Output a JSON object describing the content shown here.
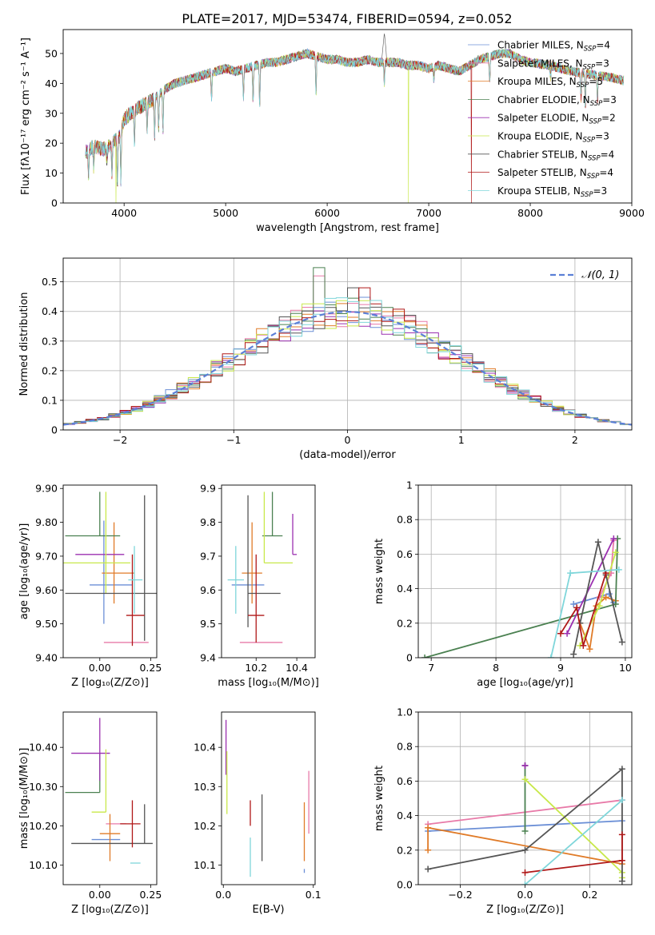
{
  "title": "PLATE=2017, MJD=53474, FIBERID=0594, z=0.052",
  "fits": [
    {
      "name": "Chabrier MILES",
      "nssp": "4",
      "color": "#6b8fd6"
    },
    {
      "name": "Salpeter MILES",
      "nssp": "3",
      "color": "#e87aa8"
    },
    {
      "name": "Kroupa MILES",
      "nssp": "5",
      "color": "#e07b28"
    },
    {
      "name": "Chabrier ELODIE",
      "nssp": "3",
      "color": "#4a8050"
    },
    {
      "name": "Salpeter ELODIE",
      "nssp": "2",
      "color": "#9b30b0"
    },
    {
      "name": "Kroupa ELODIE",
      "nssp": "3",
      "color": "#c8e84a"
    },
    {
      "name": "Chabrier STELIB",
      "nssp": "4",
      "color": "#555555"
    },
    {
      "name": "Salpeter STELIB",
      "nssp": "4",
      "color": "#b01818"
    },
    {
      "name": "Kroupa STELIB",
      "nssp": "3",
      "color": "#7fd6da"
    }
  ],
  "chart_data": [
    {
      "id": "spectrum",
      "type": "line",
      "xlabel": "wavelength [Angstrom, rest frame]",
      "ylabel": "Flux [fλ10⁻¹⁷ erg cm⁻² s⁻¹ A⁻¹]",
      "xlim": [
        3400,
        9000
      ],
      "ylim": [
        0,
        58
      ],
      "xticks": [
        4000,
        5000,
        6000,
        7000,
        8000,
        9000
      ],
      "yticks": [
        0,
        10,
        20,
        30,
        40,
        50
      ],
      "legend": "top-right",
      "continuum": [
        [
          3620,
          17
        ],
        [
          3700,
          19
        ],
        [
          3800,
          18
        ],
        [
          3880,
          20
        ],
        [
          3950,
          22
        ],
        [
          4000,
          28
        ],
        [
          4100,
          31
        ],
        [
          4200,
          33
        ],
        [
          4300,
          35
        ],
        [
          4400,
          38
        ],
        [
          4500,
          40
        ],
        [
          4600,
          41
        ],
        [
          4700,
          42
        ],
        [
          4800,
          43
        ],
        [
          4900,
          44
        ],
        [
          5000,
          45
        ],
        [
          5100,
          44
        ],
        [
          5200,
          45
        ],
        [
          5300,
          46
        ],
        [
          5400,
          47
        ],
        [
          5500,
          47
        ],
        [
          5600,
          48
        ],
        [
          5700,
          49
        ],
        [
          5800,
          50
        ],
        [
          5900,
          49
        ],
        [
          6000,
          48
        ],
        [
          6100,
          48
        ],
        [
          6200,
          47
        ],
        [
          6300,
          47
        ],
        [
          6400,
          48
        ],
        [
          6500,
          47
        ],
        [
          6600,
          47
        ],
        [
          6700,
          47
        ],
        [
          6800,
          46
        ],
        [
          6900,
          46
        ],
        [
          7000,
          45
        ],
        [
          7100,
          46
        ],
        [
          7200,
          45
        ],
        [
          7300,
          44
        ],
        [
          7400,
          46
        ],
        [
          7500,
          48
        ],
        [
          7600,
          49
        ],
        [
          7700,
          50
        ],
        [
          7800,
          50
        ],
        [
          7900,
          48
        ],
        [
          8000,
          47
        ],
        [
          8200,
          46
        ],
        [
          8400,
          44
        ],
        [
          8600,
          43
        ],
        [
          8800,
          42
        ],
        [
          8920,
          41
        ]
      ],
      "absorption": [
        [
          3650,
          9
        ],
        [
          3700,
          12
        ],
        [
          3830,
          14
        ],
        [
          3880,
          10
        ],
        [
          3934,
          6
        ],
        [
          3968,
          8
        ],
        [
          4102,
          20
        ],
        [
          4227,
          25
        ],
        [
          4300,
          22
        ],
        [
          4340,
          25
        ],
        [
          4383,
          24
        ],
        [
          4861,
          35
        ],
        [
          5175,
          35
        ],
        [
          5270,
          34
        ],
        [
          5335,
          32
        ],
        [
          5890,
          36
        ],
        [
          6563,
          40
        ],
        [
          7050,
          41
        ],
        [
          7600,
          40
        ],
        [
          8200,
          42
        ],
        [
          8500,
          35
        ],
        [
          8542,
          32
        ],
        [
          8662,
          34
        ]
      ],
      "dips": [
        [
          3920,
          "#c8e84a"
        ],
        [
          6800,
          "#c8e84a"
        ],
        [
          7420,
          "#b01818"
        ]
      ],
      "peak": [
        [
          6540,
          50
        ],
        [
          6563,
          57
        ],
        [
          6580,
          50
        ]
      ]
    },
    {
      "id": "residuals",
      "type": "histogram",
      "xlabel": "(data-model)/error",
      "ylabel": "Normed distribution",
      "xlim": [
        -2.5,
        2.5
      ],
      "ylim": [
        0,
        0.58
      ],
      "xticks": [
        -2,
        -1,
        0,
        1,
        2
      ],
      "yticks": [
        0.0,
        0.1,
        0.2,
        0.3,
        0.4,
        0.5
      ],
      "bin_width": 0.1,
      "gaussian_label": "𝒩(0, 1)",
      "legend": "top-right"
    },
    {
      "id": "age_vs_Z",
      "type": "errorbar",
      "xlabel": "Z [log₁₀(Z/Z⊙)]",
      "ylabel": "age  [log₁₀(age/yr)]",
      "xlim": [
        -0.18,
        0.28
      ],
      "ylim": [
        9.4,
        9.91
      ],
      "xticks": [
        0.0,
        0.25
      ],
      "yticks": [
        9.4,
        9.5,
        9.6,
        9.7,
        9.8,
        9.9
      ],
      "points": [
        {
          "fit": 0,
          "x": 0.02,
          "y": 9.615,
          "xerr": [
            0.07,
            0.14
          ],
          "yerr": [
            0.115,
            0.19
          ]
        },
        {
          "fit": 1,
          "x": 0.13,
          "y": 9.445,
          "xerr": [
            0.11,
            0.11
          ],
          "yerr": [
            0.0,
            0.0
          ]
        },
        {
          "fit": 2,
          "x": 0.07,
          "y": 9.65,
          "xerr": [
            0.06,
            0.1
          ],
          "yerr": [
            0.09,
            0.15
          ]
        },
        {
          "fit": 3,
          "x": 0.0,
          "y": 9.76,
          "xerr": [
            0.17,
            0.1
          ],
          "yerr": [
            0.0,
            0.13
          ]
        },
        {
          "fit": 4,
          "x": 0.0,
          "y": 9.705,
          "xerr": [
            0.12,
            0.12
          ],
          "yerr": [
            0.0,
            0.0
          ]
        },
        {
          "fit": 5,
          "x": 0.03,
          "y": 9.68,
          "xerr": [
            0.21,
            0.12
          ],
          "yerr": [
            0.09,
            0.21
          ]
        },
        {
          "fit": 6,
          "x": 0.22,
          "y": 9.59,
          "xerr": [
            0.39,
            0.19
          ],
          "yerr": [
            0.14,
            0.29
          ]
        },
        {
          "fit": 7,
          "x": 0.16,
          "y": 9.525,
          "xerr": [
            0.03,
            0.06
          ],
          "yerr": [
            0.09,
            0.18
          ]
        },
        {
          "fit": 8,
          "x": 0.17,
          "y": 9.63,
          "xerr": [
            0.03,
            0.04
          ],
          "yerr": [
            0.1,
            0.1
          ]
        }
      ]
    },
    {
      "id": "age_vs_mass",
      "type": "errorbar",
      "xlabel": "mass [log₁₀(M/M⊙)]",
      "ylabel": "",
      "xlim": [
        10.03,
        10.49
      ],
      "ylim": [
        9.4,
        9.91
      ],
      "xticks": [
        10.2,
        10.4
      ],
      "yticks": [
        9.4,
        9.5,
        9.6,
        9.7,
        9.8,
        9.9
      ],
      "points": [
        {
          "fit": 0,
          "x": 10.16,
          "y": 9.615,
          "xerr": [
            0.08,
            0.08
          ],
          "yerr": [
            0.0,
            0.0
          ]
        },
        {
          "fit": 1,
          "x": 10.2,
          "y": 9.445,
          "xerr": [
            0.08,
            0.13
          ],
          "yerr": [
            0.0,
            0.0
          ]
        },
        {
          "fit": 2,
          "x": 10.18,
          "y": 9.65,
          "xerr": [
            0.05,
            0.05
          ],
          "yerr": [
            0.09,
            0.15
          ]
        },
        {
          "fit": 3,
          "x": 10.28,
          "y": 9.76,
          "xerr": [
            0.05,
            0.05
          ],
          "yerr": [
            0.0,
            0.13
          ]
        },
        {
          "fit": 4,
          "x": 10.38,
          "y": 9.705,
          "xerr": [
            0.0,
            0.02
          ],
          "yerr": [
            0.0,
            0.12
          ]
        },
        {
          "fit": 5,
          "x": 10.24,
          "y": 9.68,
          "xerr": [
            0.0,
            0.14
          ],
          "yerr": [
            0.0,
            0.21
          ]
        },
        {
          "fit": 6,
          "x": 10.16,
          "y": 9.59,
          "xerr": [
            0.0,
            0.16
          ],
          "yerr": [
            0.1,
            0.29
          ]
        },
        {
          "fit": 7,
          "x": 10.2,
          "y": 9.525,
          "xerr": [
            0.04,
            0.04
          ],
          "yerr": [
            0.08,
            0.18
          ]
        },
        {
          "fit": 8,
          "x": 10.1,
          "y": 9.63,
          "xerr": [
            0.04,
            0.04
          ],
          "yerr": [
            0.1,
            0.1
          ]
        }
      ]
    },
    {
      "id": "weight_vs_age",
      "type": "line",
      "xlabel": "age  [log₁₀(age/yr)]",
      "ylabel": "mass weight",
      "xlim": [
        6.8,
        10.1
      ],
      "ylim": [
        0,
        1.0
      ],
      "xticks": [
        7,
        8,
        9,
        10
      ],
      "yticks": [
        0.0,
        0.2,
        0.4,
        0.6,
        0.8,
        1.0
      ],
      "series": [
        {
          "fit": 0,
          "x": [
            9.2,
            9.75,
            9.82
          ],
          "y": [
            0.31,
            0.37,
            0.32
          ]
        },
        {
          "fit": 1,
          "x": [
            9.6,
            9.78,
            9.82
          ],
          "y": [
            0.35,
            0.49,
            0.68
          ]
        },
        {
          "fit": 2,
          "x": [
            9.3,
            9.45,
            9.55,
            9.7,
            9.85
          ],
          "y": [
            0.2,
            0.05,
            0.3,
            0.35,
            0.33
          ]
        },
        {
          "fit": 3,
          "x": [
            6.9,
            9.85,
            9.88
          ],
          "y": [
            0.0,
            0.31,
            0.69
          ]
        },
        {
          "fit": 4,
          "x": [
            9.1,
            9.82
          ],
          "y": [
            0.14,
            0.69
          ]
        },
        {
          "fit": 5,
          "x": [
            9.3,
            9.6,
            9.85
          ],
          "y": [
            0.07,
            0.3,
            0.61
          ]
        },
        {
          "fit": 6,
          "x": [
            9.2,
            9.3,
            9.58,
            9.7,
            9.95
          ],
          "y": [
            0.02,
            0.2,
            0.67,
            0.48,
            0.09
          ]
        },
        {
          "fit": 7,
          "x": [
            9.0,
            9.25,
            9.35,
            9.7
          ],
          "y": [
            0.14,
            0.29,
            0.07,
            0.49
          ]
        },
        {
          "fit": 8,
          "x": [
            8.85,
            9.15,
            9.9
          ],
          "y": [
            0.0,
            0.49,
            0.51
          ]
        }
      ]
    },
    {
      "id": "mass_vs_Z",
      "type": "errorbar",
      "xlabel": "Z [log₁₀(Z/Z⊙)]",
      "ylabel": "mass [log₁₀(M/M⊙)]",
      "xlim": [
        -0.18,
        0.28
      ],
      "ylim": [
        10.05,
        10.49
      ],
      "xticks": [
        0.0,
        0.25
      ],
      "yticks": [
        10.1,
        10.2,
        10.3,
        10.4
      ],
      "points": [
        {
          "fit": 0,
          "x": 0.03,
          "y": 10.165,
          "xerr": [
            0.07,
            0.07
          ],
          "yerr": [
            0.0,
            0.0
          ]
        },
        {
          "fit": 1,
          "x": 0.13,
          "y": 10.205,
          "xerr": [
            0.1,
            0.0
          ],
          "yerr": [
            0.0,
            0.0
          ]
        },
        {
          "fit": 2,
          "x": 0.05,
          "y": 10.18,
          "xerr": [
            0.05,
            0.05
          ],
          "yerr": [
            0.07,
            0.05
          ]
        },
        {
          "fit": 3,
          "x": 0.0,
          "y": 10.285,
          "xerr": [
            0.17,
            0.0
          ],
          "yerr": [
            0.0,
            0.1
          ]
        },
        {
          "fit": 4,
          "x": 0.0,
          "y": 10.385,
          "xerr": [
            0.14,
            0.05
          ],
          "yerr": [
            0.07,
            0.09
          ]
        },
        {
          "fit": 5,
          "x": 0.03,
          "y": 10.235,
          "xerr": [
            0.07,
            0.0
          ],
          "yerr": [
            0.0,
            0.16
          ]
        },
        {
          "fit": 6,
          "x": 0.22,
          "y": 10.155,
          "xerr": [
            0.36,
            0.04
          ],
          "yerr": [
            0.0,
            0.1
          ]
        },
        {
          "fit": 7,
          "x": 0.16,
          "y": 10.205,
          "xerr": [
            0.06,
            0.04
          ],
          "yerr": [
            0.06,
            0.06
          ]
        },
        {
          "fit": 8,
          "x": 0.17,
          "y": 10.105,
          "xerr": [
            0.02,
            0.03
          ],
          "yerr": [
            0.0,
            0.0
          ]
        }
      ]
    },
    {
      "id": "mass_vs_EBV",
      "type": "errorbar",
      "xlabel": "E(B-V)",
      "ylabel": "",
      "xlim": [
        -0.002,
        0.102
      ],
      "ylim": [
        10.05,
        10.49
      ],
      "xticks": [
        0.0,
        0.1
      ],
      "yticks": [
        10.1,
        10.2,
        10.3,
        10.4
      ],
      "points": [
        {
          "fit": 0,
          "x": 0.09,
          "y": 10.09,
          "yerr": [
            0.01,
            0.0
          ]
        },
        {
          "fit": 1,
          "x": 0.095,
          "y": 10.18,
          "yerr": [
            0.0,
            0.16
          ]
        },
        {
          "fit": 2,
          "x": 0.09,
          "y": 10.18,
          "yerr": [
            0.07,
            0.08
          ]
        },
        {
          "fit": 4,
          "x": 0.003,
          "y": 10.38,
          "yerr": [
            0.05,
            0.09
          ]
        },
        {
          "fit": 5,
          "x": 0.004,
          "y": 10.3,
          "yerr": [
            0.07,
            0.09
          ]
        },
        {
          "fit": 6,
          "x": 0.043,
          "y": 10.2,
          "yerr": [
            0.09,
            0.08
          ]
        },
        {
          "fit": 7,
          "x": 0.03,
          "y": 10.2,
          "yerr": [
            0.0,
            0.065
          ]
        },
        {
          "fit": 8,
          "x": 0.03,
          "y": 10.12,
          "yerr": [
            0.05,
            0.05
          ]
        }
      ]
    },
    {
      "id": "weight_vs_Z",
      "type": "line",
      "xlabel": "Z [log₁₀(Z/Z⊙)]",
      "ylabel": "mass weight",
      "xlim": [
        -0.33,
        0.33
      ],
      "ylim": [
        0,
        1.0
      ],
      "xticks": [
        -0.2,
        0.0,
        0.2
      ],
      "yticks": [
        0.0,
        0.2,
        0.4,
        0.6,
        0.8,
        1.0
      ],
      "series": [
        {
          "fit": 0,
          "x": [
            -0.3,
            0.3
          ],
          "y": [
            0.31,
            0.37
          ]
        },
        {
          "fit": 1,
          "x": [
            -0.3,
            0.3
          ],
          "y": [
            0.35,
            0.49
          ]
        },
        {
          "fit": 2,
          "x": [
            -0.3,
            -0.3,
            0.3
          ],
          "y": [
            0.2,
            0.33,
            0.12
          ]
        },
        {
          "fit": 3,
          "x": [
            0.0,
            0.0
          ],
          "y": [
            0.31,
            0.69
          ]
        },
        {
          "fit": 4,
          "x": [
            0.0,
            0.0
          ],
          "y": [
            0.69,
            0.69
          ]
        },
        {
          "fit": 5,
          "x": [
            0.0,
            0.3,
            0.3
          ],
          "y": [
            0.61,
            0.07,
            0.04
          ]
        },
        {
          "fit": 6,
          "x": [
            -0.3,
            0.0,
            0.3,
            0.3
          ],
          "y": [
            0.09,
            0.2,
            0.67,
            0.02
          ]
        },
        {
          "fit": 7,
          "x": [
            0.0,
            0.3,
            0.3
          ],
          "y": [
            0.07,
            0.14,
            0.29
          ]
        },
        {
          "fit": 8,
          "x": [
            0.0,
            0.3
          ],
          "y": [
            0.0,
            0.49
          ]
        }
      ]
    }
  ]
}
